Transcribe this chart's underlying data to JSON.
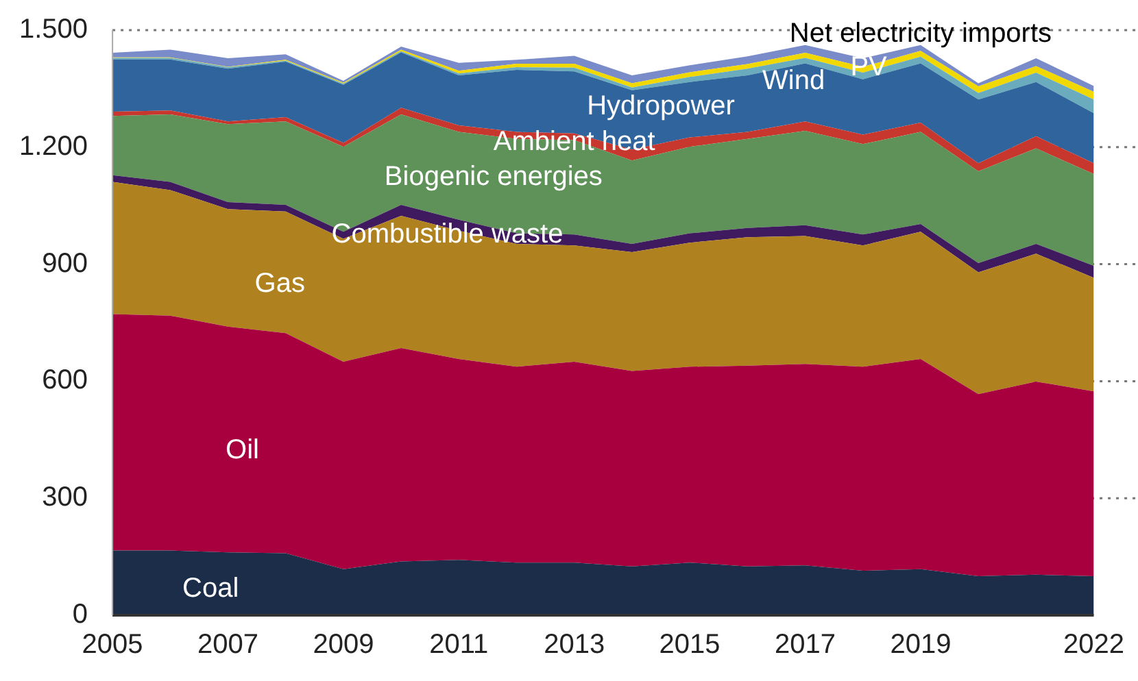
{
  "chart_data": {
    "type": "area",
    "stacked": true,
    "grid": "y",
    "legend": false,
    "categories": [
      "2005",
      null,
      "2007",
      null,
      "2009",
      null,
      "2011",
      null,
      "2013",
      null,
      "2015",
      null,
      "2017",
      null,
      "2019",
      null,
      null,
      "2022"
    ],
    "ylim": [
      0,
      1500
    ],
    "yticks": [
      0,
      300,
      600,
      900,
      {
        "value": 1200,
        "label": "1.200"
      },
      {
        "value": 1500,
        "label": "1.500"
      }
    ],
    "series": [
      {
        "name": "Coal",
        "color": "#1b2d48",
        "values": [
          166,
          166,
          161,
          159,
          118,
          138,
          142,
          135,
          135,
          125,
          135,
          125,
          128,
          114,
          118,
          100,
          104,
          100
        ]
      },
      {
        "name": "Oil",
        "color": "#a8003e",
        "values": [
          606,
          602,
          579,
          564,
          532,
          547,
          515,
          502,
          515,
          501,
          502,
          515,
          516,
          523,
          539,
          467,
          495,
          474
        ]
      },
      {
        "name": "Gas",
        "color": "#b0821f",
        "values": [
          339,
          322,
          301,
          312,
          315,
          339,
          329,
          315,
          298,
          305,
          318,
          329,
          328,
          311,
          326,
          312,
          328,
          291
        ]
      },
      {
        "name": "Combustible waste",
        "color": "#3f1a5e",
        "values": [
          17,
          21,
          18,
          17,
          18,
          28,
          28,
          27,
          28,
          21,
          24,
          24,
          28,
          28,
          20,
          24,
          25,
          31
        ]
      },
      {
        "name": "Biogenic energies",
        "color": "#5e9259",
        "values": [
          152,
          173,
          200,
          214,
          218,
          232,
          225,
          242,
          242,
          214,
          222,
          228,
          242,
          232,
          236,
          235,
          245,
          235
        ]
      },
      {
        "name": "Ambient heat",
        "color": "#c8372d",
        "values": [
          11,
          10,
          7,
          11,
          10,
          17,
          17,
          18,
          17,
          28,
          24,
          18,
          24,
          24,
          24,
          21,
          31,
          28
        ]
      },
      {
        "name": "Hydropower",
        "color": "#30649c",
        "values": [
          134,
          131,
          135,
          142,
          149,
          142,
          128,
          159,
          159,
          152,
          142,
          145,
          149,
          142,
          152,
          163,
          139,
          128
        ]
      },
      {
        "name": "Wind",
        "color": "#6aabbe",
        "values": [
          4,
          4,
          4,
          3,
          3,
          3,
          5,
          7,
          10,
          7,
          13,
          17,
          14,
          17,
          17,
          17,
          24,
          35
        ]
      },
      {
        "name": "PV",
        "color": "#f0d800",
        "values": [
          1,
          1,
          1,
          2,
          2,
          4,
          7,
          9,
          10,
          11,
          12,
          12,
          13,
          15,
          15,
          17,
          17,
          20
        ]
      },
      {
        "name": "Net electricity imports",
        "color": "#7a8bc9",
        "values": [
          12,
          20,
          22,
          14,
          5,
          8,
          20,
          10,
          20,
          20,
          18,
          20,
          20,
          22,
          15,
          8,
          20,
          15
        ]
      }
    ]
  }
}
